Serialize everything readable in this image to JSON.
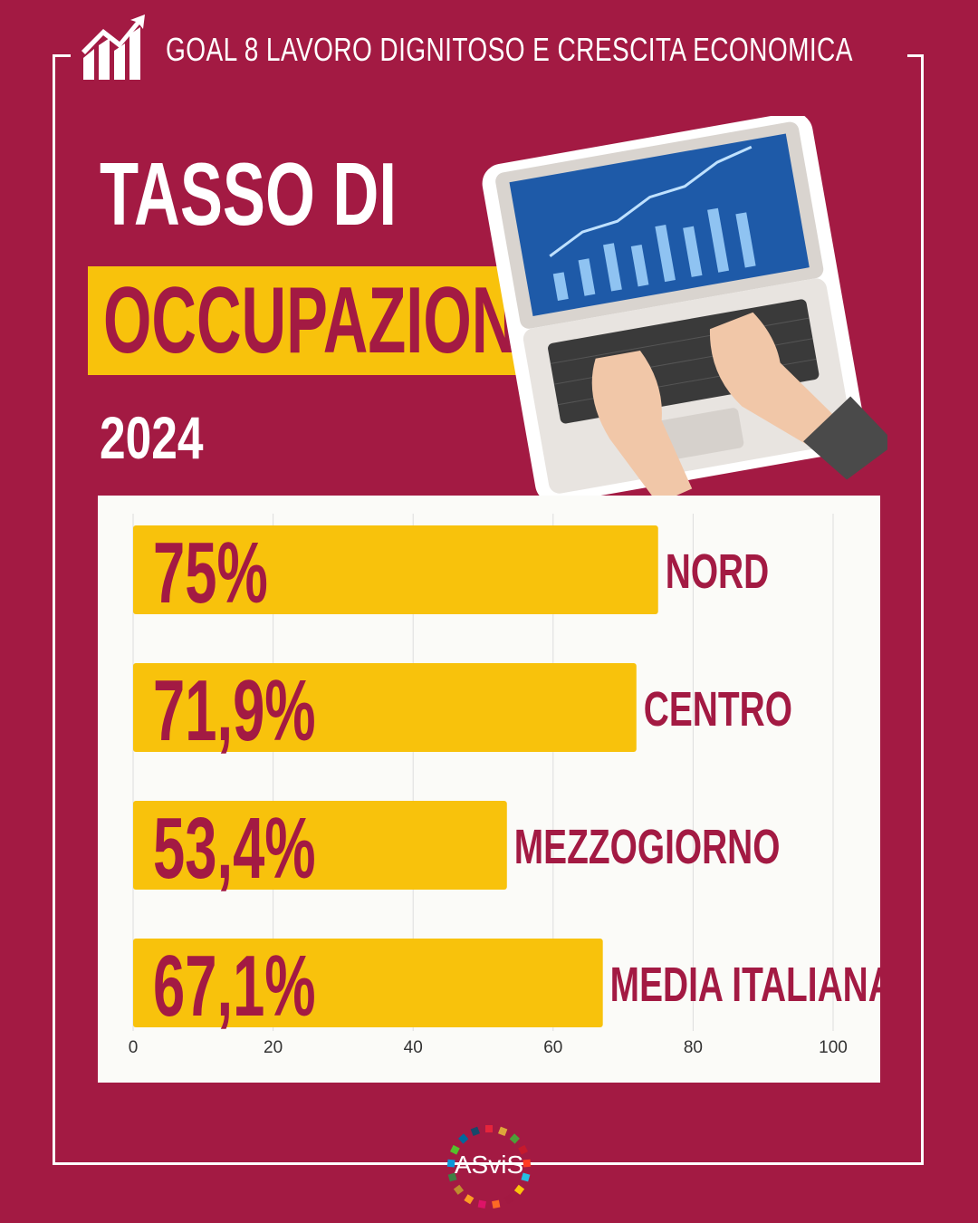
{
  "header": {
    "goal_label": "GOAL 8 LAVORO DIGNITOSO E CRESCITA ECONOMICA",
    "icon": "growth-chart-icon"
  },
  "title": {
    "line1": "TASSO DI",
    "line2": "OCCUPAZIONE",
    "year": "2024"
  },
  "colors": {
    "background": "#A31A43",
    "accent_yellow": "#F8C20C",
    "text_dark": "#A31A43",
    "panel": "#FBFBF8"
  },
  "chart_data": {
    "type": "bar",
    "orientation": "horizontal",
    "categories": [
      "NORD",
      "CENTRO",
      "MEZZOGIORNO",
      "MEDIA ITALIANA"
    ],
    "values": [
      75,
      71.9,
      53.4,
      67.1
    ],
    "value_labels": [
      "75%",
      "71,9%",
      "53,4%",
      "67,1%"
    ],
    "xlim": [
      0,
      100
    ],
    "xticks": [
      "0",
      "20",
      "40",
      "60",
      "80",
      "100"
    ],
    "grid": true
  },
  "footer": {
    "logo_text": "ASviS"
  }
}
